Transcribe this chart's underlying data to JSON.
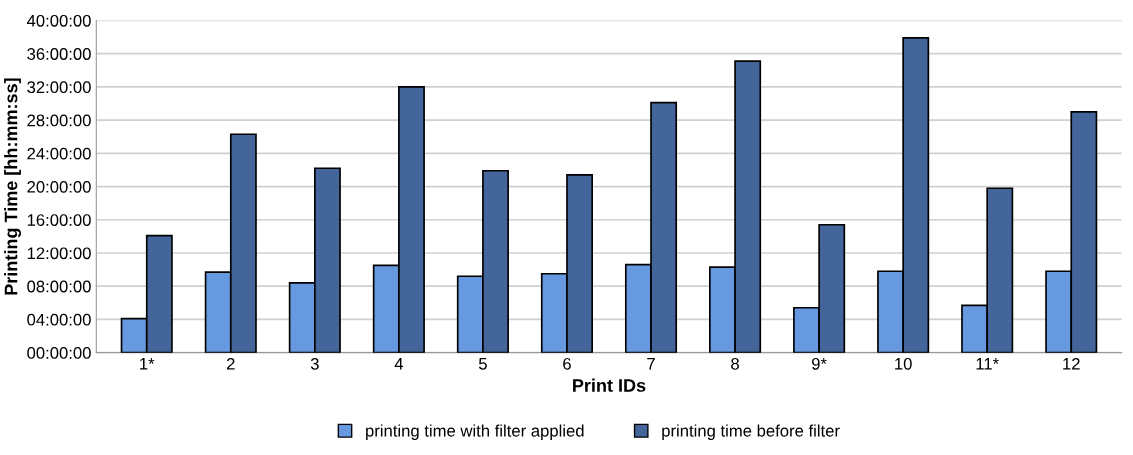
{
  "chart_data": {
    "type": "bar",
    "xlabel": "Print IDs",
    "ylabel": "Printing Time [hh:mm:ss]",
    "categories": [
      "1*",
      "2",
      "3",
      "4",
      "5",
      "6",
      "7",
      "8",
      "9*",
      "10",
      "11*",
      "12"
    ],
    "series": [
      {
        "name": "printing time with filter applied",
        "color": "#6699e0",
        "values": [
          4.1,
          9.7,
          8.4,
          10.5,
          9.2,
          9.5,
          10.6,
          10.3,
          5.4,
          9.8,
          5.7,
          9.8
        ]
      },
      {
        "name": "printing time before filter",
        "color": "#43659a",
        "values": [
          14.1,
          26.3,
          22.2,
          32.0,
          21.9,
          21.4,
          30.1,
          35.1,
          15.4,
          37.9,
          19.8,
          29.0
        ]
      }
    ],
    "ylim": [
      0,
      40
    ],
    "yticks": [
      {
        "value": 0,
        "label": "00:00:00"
      },
      {
        "value": 4,
        "label": "04:00:00"
      },
      {
        "value": 8,
        "label": "08:00:00"
      },
      {
        "value": 12,
        "label": "12:00:00"
      },
      {
        "value": 16,
        "label": "16:00:00"
      },
      {
        "value": 20,
        "label": "20:00:00"
      },
      {
        "value": 24,
        "label": "24:00:00"
      },
      {
        "value": 28,
        "label": "28:00:00"
      },
      {
        "value": 32,
        "label": "32:00:00"
      },
      {
        "value": 36,
        "label": "36:00:00"
      },
      {
        "value": 40,
        "label": "40:00:00"
      }
    ],
    "grid": "y",
    "legend": "bottom"
  }
}
